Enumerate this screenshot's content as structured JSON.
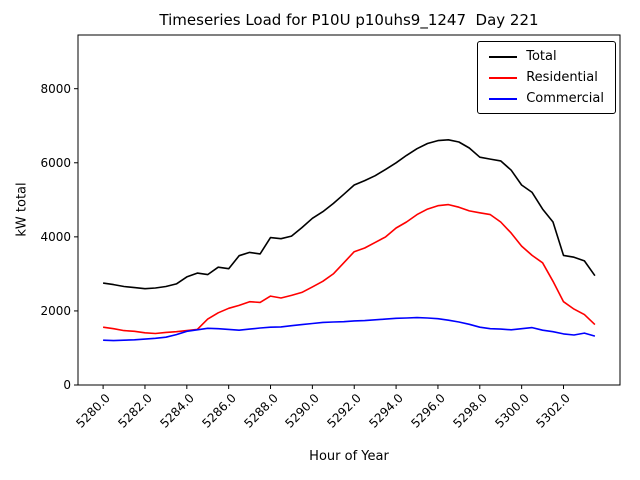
{
  "chart_data": {
    "type": "line",
    "title": "Timeseries Load for P10U p10uhs9_1247  Day 221",
    "xlabel": "Hour of Year",
    "ylabel": "kW total",
    "grid": false,
    "legend_position": "upper right",
    "xlim": [
      5278.8,
      5304.7
    ],
    "ylim": [
      0,
      9450
    ],
    "xticks": [
      5280,
      5282,
      5284,
      5286,
      5288,
      5290,
      5292,
      5294,
      5296,
      5298,
      5300,
      5302
    ],
    "xtick_labels": [
      "5280.0",
      "5282.0",
      "5284.0",
      "5286.0",
      "5288.0",
      "5290.0",
      "5292.0",
      "5294.0",
      "5296.0",
      "5298.0",
      "5300.0",
      "5302.0"
    ],
    "yticks": [
      0,
      2000,
      4000,
      6000,
      8000
    ],
    "ytick_labels": [
      "0",
      "2000",
      "4000",
      "6000",
      "8000"
    ],
    "x": [
      5280.0,
      5280.5,
      5281.0,
      5281.5,
      5282.0,
      5282.5,
      5283.0,
      5283.5,
      5284.0,
      5284.5,
      5285.0,
      5285.5,
      5286.0,
      5286.5,
      5287.0,
      5287.5,
      5288.0,
      5288.5,
      5289.0,
      5289.5,
      5290.0,
      5290.5,
      5291.0,
      5291.5,
      5292.0,
      5292.5,
      5293.0,
      5293.5,
      5294.0,
      5294.5,
      5295.0,
      5295.5,
      5296.0,
      5296.5,
      5297.0,
      5297.5,
      5298.0,
      5298.5,
      5299.0,
      5299.5,
      5300.0,
      5300.5,
      5301.0,
      5301.5,
      5302.0,
      5302.5,
      5303.0,
      5303.5
    ],
    "series": [
      {
        "name": "Total",
        "color": "#000000",
        "values": [
          2750,
          2710,
          2660,
          2630,
          2600,
          2620,
          2660,
          2730,
          2920,
          3020,
          2980,
          3180,
          3140,
          3490,
          3580,
          3540,
          3980,
          3950,
          4020,
          4250,
          4500,
          4680,
          4900,
          5150,
          5400,
          5520,
          5650,
          5820,
          6000,
          6200,
          6380,
          6520,
          6600,
          6620,
          6560,
          6400,
          6150,
          6100,
          6050,
          5800,
          5400,
          5200,
          4750,
          4400,
          3500,
          3450,
          3350,
          2950
        ]
      },
      {
        "name": "Residential",
        "color": "#ff0000",
        "values": [
          1560,
          1520,
          1470,
          1450,
          1410,
          1390,
          1420,
          1440,
          1470,
          1500,
          1780,
          1950,
          2070,
          2150,
          2250,
          2230,
          2400,
          2350,
          2420,
          2500,
          2650,
          2800,
          3000,
          3300,
          3600,
          3700,
          3850,
          4000,
          4240,
          4400,
          4600,
          4750,
          4840,
          4870,
          4800,
          4700,
          4650,
          4600,
          4400,
          4100,
          3750,
          3500,
          3300,
          2800,
          2250,
          2050,
          1900,
          1630
        ]
      },
      {
        "name": "Commercial",
        "color": "#0000ff",
        "values": [
          1210,
          1200,
          1210,
          1220,
          1240,
          1260,
          1290,
          1360,
          1450,
          1490,
          1530,
          1520,
          1500,
          1480,
          1510,
          1540,
          1560,
          1570,
          1600,
          1630,
          1660,
          1690,
          1700,
          1710,
          1730,
          1740,
          1760,
          1780,
          1800,
          1810,
          1820,
          1810,
          1790,
          1750,
          1700,
          1640,
          1560,
          1520,
          1510,
          1490,
          1520,
          1550,
          1480,
          1440,
          1380,
          1350,
          1400,
          1320
        ]
      }
    ]
  }
}
